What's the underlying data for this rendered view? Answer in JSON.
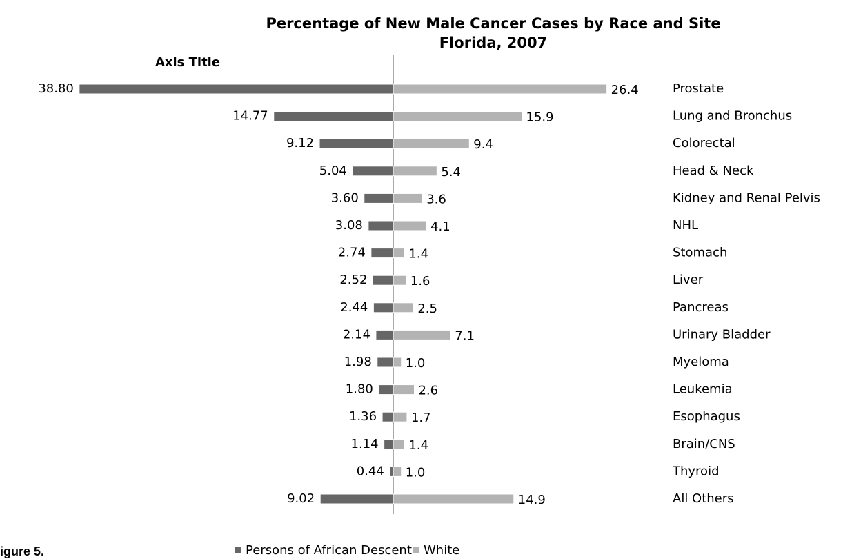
{
  "chart_data": {
    "type": "bar",
    "title": "Percentage of New Male Cancer Cases by Race and Site",
    "subtitle": "Florida, 2007",
    "axis_title": "Axis Title",
    "figure_label": "igure 5.",
    "categories": [
      "Prostate",
      "Lung and Bronchus",
      "Colorectal",
      "Head & Neck",
      "Kidney and Renal Pelvis",
      "NHL",
      "Stomach",
      "Liver",
      "Pancreas",
      "Urinary Bladder",
      "Myeloma",
      "Leukemia",
      "Esophagus",
      "Brain/CNS",
      "Thyroid",
      "All Others"
    ],
    "series": [
      {
        "name": "Persons of African Descent",
        "color": "#666666",
        "side": "left",
        "values": [
          38.8,
          14.77,
          9.12,
          5.04,
          3.6,
          3.08,
          2.74,
          2.52,
          2.44,
          2.14,
          1.98,
          1.8,
          1.36,
          1.14,
          0.44,
          9.02
        ],
        "value_labels": [
          "38.80",
          "14.77",
          "9.12",
          "5.04",
          "3.60",
          "3.08",
          "2.74",
          "2.52",
          "2.44",
          "2.14",
          "1.98",
          "1.80",
          "1.36",
          "1.14",
          "0.44",
          "9.02"
        ]
      },
      {
        "name": "White",
        "color": "#b3b3b3",
        "side": "right",
        "values": [
          26.4,
          15.9,
          9.4,
          5.4,
          3.6,
          4.1,
          1.4,
          1.6,
          2.5,
          7.1,
          1.0,
          2.6,
          1.7,
          1.4,
          1.0,
          14.9
        ],
        "value_labels": [
          "26.4",
          "15.9",
          "9.4",
          "5.4",
          "3.6",
          "4.1",
          "1.4",
          "1.6",
          "2.5",
          "7.1",
          "1.0",
          "2.6",
          "1.7",
          "1.4",
          "1.0",
          "14.9"
        ]
      }
    ]
  }
}
